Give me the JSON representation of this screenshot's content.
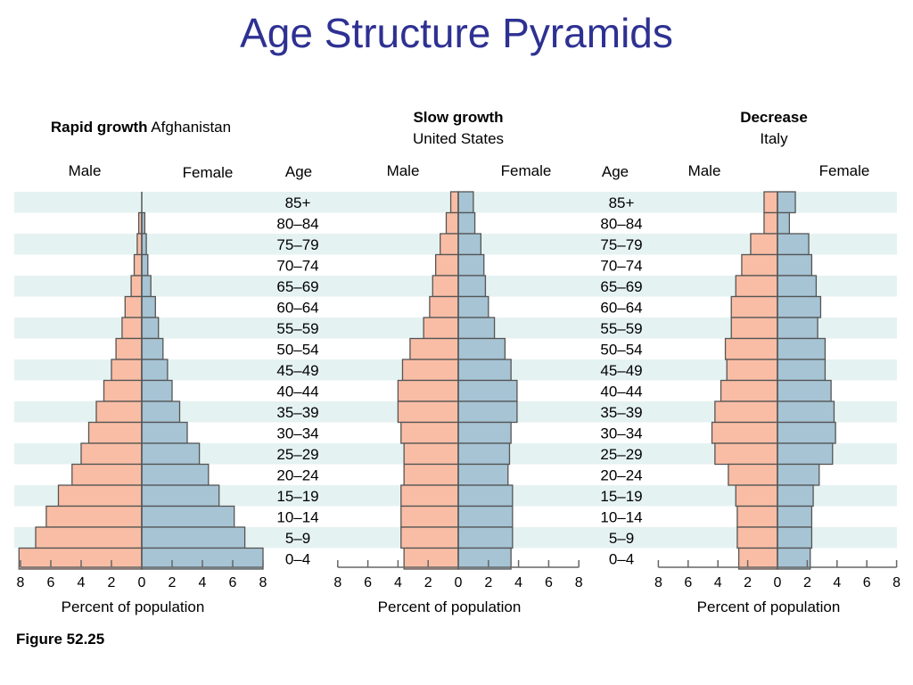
{
  "slide": {
    "title": "Age Structure Pyramids",
    "figure_label": "Figure 52.25"
  },
  "colors": {
    "male": "#f9bda5",
    "female": "#a6c4d4",
    "stripe": "#e5f2f2",
    "title": "#2e3192",
    "bar_outline": "#555555"
  },
  "chart_data": [
    {
      "type": "bar",
      "orientation": "horizontal",
      "title_bold": "Rapid growth",
      "title_rest": "Afghanistan",
      "male_label": "Male",
      "female_label": "Female",
      "age_label": "",
      "xlabel": "Percent of population",
      "xlim": [
        -8,
        8
      ],
      "xticks": [
        "8",
        "6",
        "4",
        "2",
        "0",
        "2",
        "4",
        "6",
        "8"
      ],
      "grid": false,
      "categories": [
        "85+",
        "80–84",
        "75–79",
        "70–74",
        "65–69",
        "60–64",
        "55–59",
        "50–54",
        "45–49",
        "40–44",
        "35–39",
        "30–34",
        "25–29",
        "20–24",
        "15–19",
        "10–14",
        "5–9",
        "0–4"
      ],
      "series": [
        {
          "name": "Male",
          "values": [
            0,
            0.2,
            0.3,
            0.5,
            0.7,
            1.1,
            1.3,
            1.7,
            2.0,
            2.5,
            3.0,
            3.5,
            4.0,
            4.6,
            5.5,
            6.3,
            7.0,
            8.1
          ]
        },
        {
          "name": "Female",
          "values": [
            0,
            0.2,
            0.3,
            0.4,
            0.6,
            0.9,
            1.1,
            1.4,
            1.7,
            2.0,
            2.5,
            3.0,
            3.8,
            4.4,
            5.1,
            6.1,
            6.8,
            8.0
          ]
        }
      ]
    },
    {
      "type": "bar",
      "orientation": "horizontal",
      "title_bold": "Slow growth",
      "title_rest": "United States",
      "male_label": "Male",
      "female_label": "Female",
      "age_label": "Age",
      "xlabel": "Percent of population",
      "xlim": [
        -8,
        8
      ],
      "xticks": [
        "8",
        "6",
        "4",
        "2",
        "0",
        "2",
        "4",
        "6",
        "8"
      ],
      "grid": false,
      "categories": [
        "85+",
        "80–84",
        "75–79",
        "70–74",
        "65–69",
        "60–64",
        "55–59",
        "50–54",
        "45–49",
        "40–44",
        "35–39",
        "30–34",
        "25–29",
        "20–24",
        "15–19",
        "10–14",
        "5–9",
        "0–4"
      ],
      "series": [
        {
          "name": "Male",
          "values": [
            0.5,
            0.8,
            1.2,
            1.5,
            1.7,
            1.9,
            2.3,
            3.2,
            3.7,
            4.0,
            4.0,
            3.8,
            3.6,
            3.6,
            3.8,
            3.8,
            3.8,
            3.6
          ]
        },
        {
          "name": "Female",
          "values": [
            1.0,
            1.1,
            1.5,
            1.7,
            1.8,
            2.0,
            2.4,
            3.1,
            3.5,
            3.9,
            3.9,
            3.5,
            3.4,
            3.3,
            3.6,
            3.6,
            3.6,
            3.5
          ]
        }
      ]
    },
    {
      "type": "bar",
      "orientation": "horizontal",
      "title_bold": "Decrease",
      "title_rest": "Italy",
      "male_label": "Male",
      "female_label": "Female",
      "age_label": "Age",
      "xlabel": "Percent of population",
      "xlim": [
        -8,
        8
      ],
      "xticks": [
        "8",
        "6",
        "4",
        "2",
        "0",
        "2",
        "4",
        "6",
        "8"
      ],
      "grid": false,
      "categories": [
        "85+",
        "80–84",
        "75–79",
        "70–74",
        "65–69",
        "60–64",
        "55–59",
        "50–54",
        "45–49",
        "40–44",
        "35–39",
        "30–34",
        "25–29",
        "20–24",
        "15–19",
        "10–14",
        "5–9",
        "0–4"
      ],
      "series": [
        {
          "name": "Male",
          "values": [
            0.9,
            0.9,
            1.8,
            2.4,
            2.8,
            3.1,
            3.1,
            3.5,
            3.4,
            3.8,
            4.2,
            4.4,
            4.2,
            3.3,
            2.8,
            2.7,
            2.7,
            2.6
          ]
        },
        {
          "name": "Female",
          "values": [
            1.2,
            0.8,
            2.1,
            2.3,
            2.6,
            2.9,
            2.7,
            3.2,
            3.2,
            3.6,
            3.8,
            3.9,
            3.7,
            2.8,
            2.4,
            2.3,
            2.3,
            2.2
          ]
        }
      ]
    }
  ]
}
